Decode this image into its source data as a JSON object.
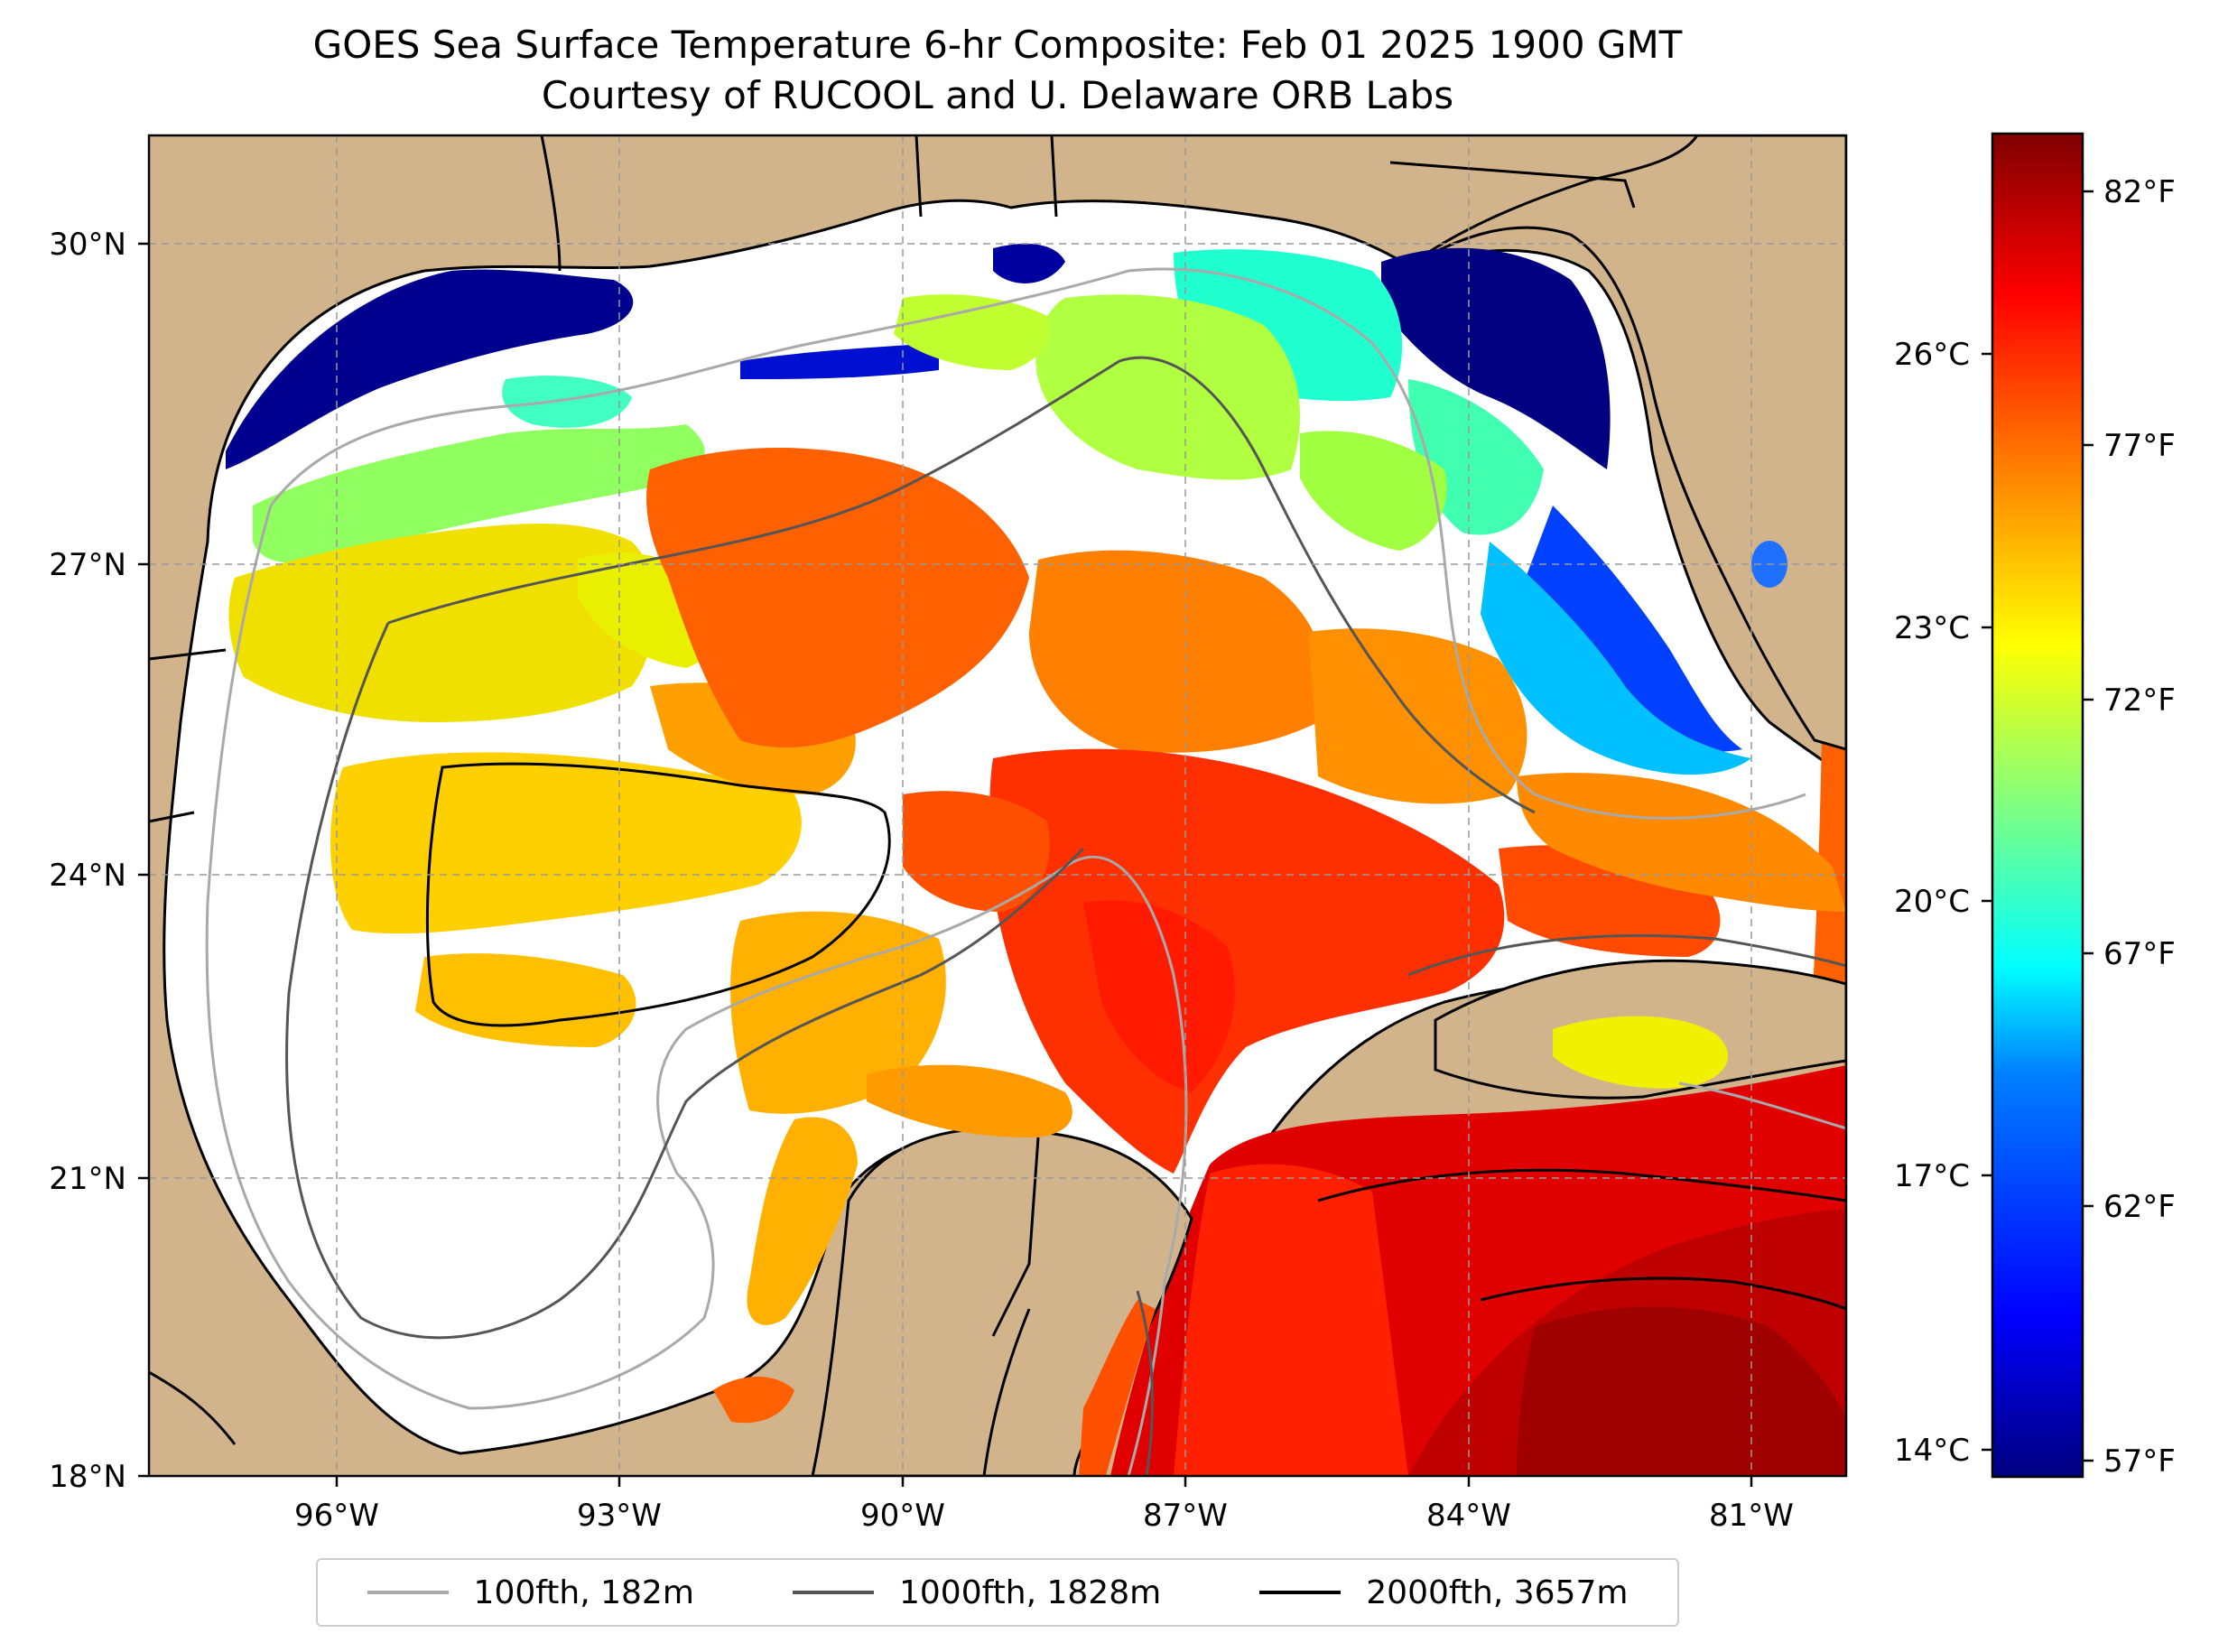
{
  "title": {
    "line1": "GOES Sea Surface Temperature 6-hr Composite: Feb 01 2025 1900 GMT",
    "line2": "Courtesy of RUCOOL and U. Delaware ORB Labs"
  },
  "map": {
    "lat_labels": [
      "30°N",
      "27°N",
      "24°N",
      "21°N",
      "18°N"
    ],
    "lon_labels": [
      "96°W",
      "93°W",
      "90°W",
      "87°W",
      "84°W",
      "81°W"
    ],
    "land_color": "#d2b48c",
    "no_data_color": "#ffffff"
  },
  "colorbar": {
    "celsius_labels": [
      "26°C",
      "23°C",
      "20°C",
      "17°C",
      "14°C"
    ],
    "fahrenheit_labels": [
      "82°F",
      "77°F",
      "72°F",
      "67°F",
      "62°F",
      "57°F"
    ],
    "colormap": "jet",
    "colors": [
      "#00007f",
      "#0000ff",
      "#0080ff",
      "#00ffff",
      "#80ff80",
      "#ffff00",
      "#ff8000",
      "#ff0000",
      "#7f0000"
    ]
  },
  "legend": {
    "items": [
      {
        "label": "100fth, 182m",
        "color": "#a9a9a9"
      },
      {
        "label": "1000fth, 1828m",
        "color": "#555555"
      },
      {
        "label": "2000fth, 3657m",
        "color": "#000000"
      }
    ]
  }
}
